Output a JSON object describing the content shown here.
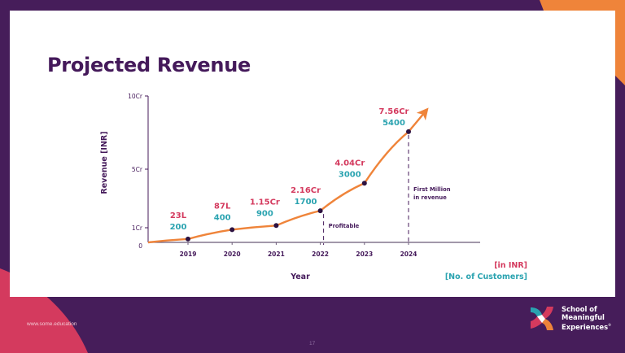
{
  "slide": {
    "title": "Projected Revenue",
    "footer_url": "www.some.education",
    "page_number": "17",
    "brand": {
      "name_lines": [
        "School of",
        "Meaningful",
        "Experiences"
      ],
      "trademark": "®",
      "logo_icon": "four-petal-pinwheel-icon"
    },
    "colors": {
      "background_purple": "#461d5a",
      "accent_orange": "#ef843a",
      "accent_pink": "#d43a5e",
      "accent_teal": "#2aa3b0",
      "title_purple": "#44195a"
    }
  },
  "chart_data": {
    "type": "line",
    "title": "Projected Revenue",
    "xlabel": "Year",
    "ylabel": "Revenue [INR]",
    "categories": [
      "2019",
      "2020",
      "2021",
      "2022",
      "2023",
      "2024"
    ],
    "y_ticks": [
      {
        "label": "0",
        "value": 0
      },
      {
        "label": "1Cr",
        "value": 1
      },
      {
        "label": "5Cr",
        "value": 5
      },
      {
        "label": "10Cr",
        "value": 10
      }
    ],
    "ylim": [
      0,
      10
    ],
    "y_unit": "Cr",
    "grid": false,
    "series": [
      {
        "name": "Revenue [in INR]",
        "color": "#ef843a",
        "values": [
          0.23,
          0.87,
          1.15,
          2.16,
          4.04,
          7.56
        ],
        "labels": [
          "23L",
          "87L",
          "1.15Cr",
          "2.16Cr",
          "4.04Cr",
          "7.56Cr"
        ],
        "label_color": "#d43a5e"
      },
      {
        "name": "No. of Customers",
        "values": [
          200,
          400,
          900,
          1700,
          3000,
          5400
        ],
        "labels": [
          "200",
          "400",
          "900",
          "1700",
          "3000",
          "5400"
        ],
        "label_color": "#2aa3b0"
      }
    ],
    "line_start": {
      "x": "origin",
      "value": 0
    },
    "arrow_end": true,
    "annotations": [
      {
        "at": "2022",
        "text_lines": [
          "Profitable"
        ],
        "style": "dashed-vertical"
      },
      {
        "at": "2024",
        "text_lines": [
          "First Million",
          "in revenue"
        ],
        "style": "dashed-vertical"
      }
    ],
    "legend": {
      "placement": "bottom-right",
      "entries": [
        {
          "text": "[in INR]",
          "color": "#d43a5e"
        },
        {
          "text": "[No. of Customers]",
          "color": "#2aa3b0"
        }
      ]
    }
  }
}
